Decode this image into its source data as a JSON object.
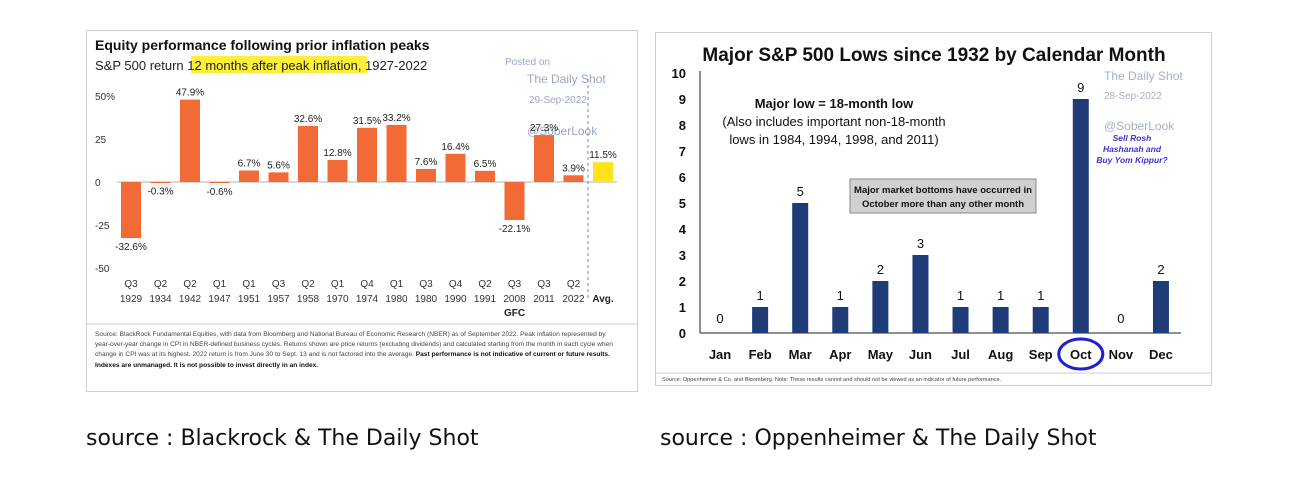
{
  "chart_data": [
    {
      "type": "bar",
      "title": "Equity performance following prior inflation peaks",
      "subtitle_pre": "S&P 500 return ",
      "subtitle_highlight": "12 months after peak inflation",
      "subtitle_post": ", 1927-2022",
      "categories": [
        "Q3 1929",
        "Q2 1934",
        "Q2 1942",
        "Q1 1947",
        "Q1 1951",
        "Q3 1957",
        "Q2 1958",
        "Q1 1970",
        "Q4 1974",
        "Q1 1980",
        "Q3 1980",
        "Q4 1990",
        "Q2 1991",
        "Q3 2008",
        "Q3 2011",
        "Q2 2022",
        "Avg."
      ],
      "cat_top": [
        "Q3",
        "Q2",
        "Q2",
        "Q1",
        "Q1",
        "Q3",
        "Q2",
        "Q1",
        "Q4",
        "Q1",
        "Q3",
        "Q4",
        "Q2",
        "Q3",
        "Q3",
        "Q2",
        ""
      ],
      "cat_bottom": [
        "1929",
        "1934",
        "1942",
        "1947",
        "1951",
        "1957",
        "1958",
        "1970",
        "1974",
        "1980",
        "1980",
        "1990",
        "1991",
        "2008",
        "2011",
        "2022",
        "Avg."
      ],
      "values": [
        -32.6,
        -0.3,
        47.9,
        -0.6,
        6.7,
        5.6,
        32.6,
        12.8,
        31.5,
        33.2,
        7.6,
        16.4,
        6.5,
        -22.1,
        27.3,
        3.9,
        11.5
      ],
      "labels": [
        "-32.6%",
        "-0.3%",
        "47.9%",
        "-0.6%",
        "6.7%",
        "5.6%",
        "32.6%",
        "12.8%",
        "31.5%",
        "33.2%",
        "7.6%",
        "16.4%",
        "6.5%",
        "-22.1%",
        "27.3%",
        "3.9%",
        "11.5%"
      ],
      "ylim": [
        -50,
        50
      ],
      "yticks": [
        50,
        25,
        0,
        -25,
        -50
      ],
      "ytick_labels": [
        "50%",
        "25",
        "0",
        "-25",
        "-50"
      ],
      "annotation_gfc": "GFC",
      "colors": {
        "bar": "#f26b36",
        "avg": "#ffe21a",
        "highlight": "#ffef3a"
      },
      "source_lines": [
        "Source: BlackRock Fundamental Equities, with data from Bloomberg and National Bureau of Economic Research (NBER) as of September 2022. Peak inflation represented by",
        "year-over-year change in CPI in NBER-defined business cycles. Returns shown are price returns (excluding dividends) and calculated starting from the month in each cycle when",
        "change in CPI was at its highest. 2022 return is from June 30 to Sept. 13 and is not factored into the average. "
      ],
      "source_bold_tail": "Past performance is not indicative of current or future results.",
      "source_bold_line": "Indexes are unmanaged. It is not possible to invest directly in an index.",
      "watermark": {
        "posted": "Posted on",
        "name": "The Daily Shot",
        "date": "29-Sep-2022",
        "handle": "@SoberLook"
      }
    },
    {
      "type": "bar",
      "title": "Major S&P 500 Lows since 1932 by Calendar Month",
      "categories": [
        "Jan",
        "Feb",
        "Mar",
        "Apr",
        "May",
        "Jun",
        "Jul",
        "Aug",
        "Sep",
        "Oct",
        "Nov",
        "Dec"
      ],
      "values": [
        0,
        1,
        5,
        1,
        2,
        3,
        1,
        1,
        1,
        9,
        0,
        2
      ],
      "labels": [
        "0",
        "1",
        "5",
        "1",
        "2",
        "3",
        "1",
        "1",
        "1",
        "9",
        "0",
        "2"
      ],
      "ylim": [
        0,
        10
      ],
      "yticks": [
        0,
        1,
        2,
        3,
        4,
        5,
        6,
        7,
        8,
        9,
        10
      ],
      "note_line1": "Major  low = 18-month low",
      "note_line2": "(Also includes important non-18-month",
      "note_line3": "lows in 1984, 1994, 1998, and 2011)",
      "box_line1": "Major market bottoms have occurred in",
      "box_line2": "October more than any other month",
      "source": "Source:  Oppenheimer & Co. and Bloomberg.  Note:  These results cannot and should not be viewed as an indicator of future performance.",
      "colors": {
        "bar": "#1f3c78",
        "circle": "#2020d0",
        "tag": "#3a36c8"
      },
      "watermark": {
        "name": "The Daily Shot",
        "date": "28-Sep-2022",
        "handle": "@SoberLook"
      },
      "tag_lines": [
        "Sell Rosh",
        "Hashanah and",
        "Buy Yom Kippur?"
      ]
    }
  ],
  "captions": {
    "left": "source : Blackrock & The Daily Shot",
    "right": "source : Oppenheimer & The Daily Shot"
  }
}
